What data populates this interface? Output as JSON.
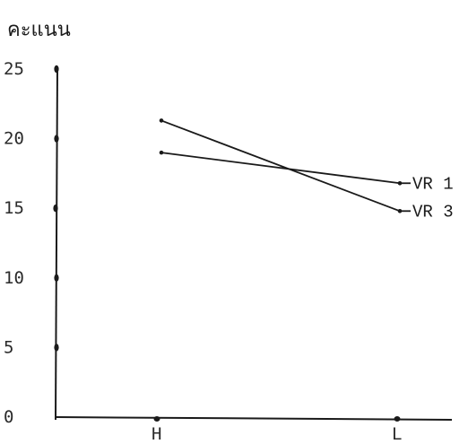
{
  "chart_data": {
    "type": "line",
    "title": "",
    "ylabel": "คะแนน",
    "xlabel": "",
    "categories": [
      "H",
      "L"
    ],
    "yticks": [
      "0",
      "5",
      "10",
      "15",
      "20",
      "25"
    ],
    "ylim": [
      0,
      25
    ],
    "grid": false,
    "legend": "inline-right",
    "series": [
      {
        "name": "VR 1",
        "values": [
          19.0,
          16.8
        ]
      },
      {
        "name": "VR 3",
        "values": [
          21.3,
          14.8
        ]
      }
    ]
  },
  "colors": {
    "ink": "#1a1a1a",
    "background": "#ffffff"
  }
}
